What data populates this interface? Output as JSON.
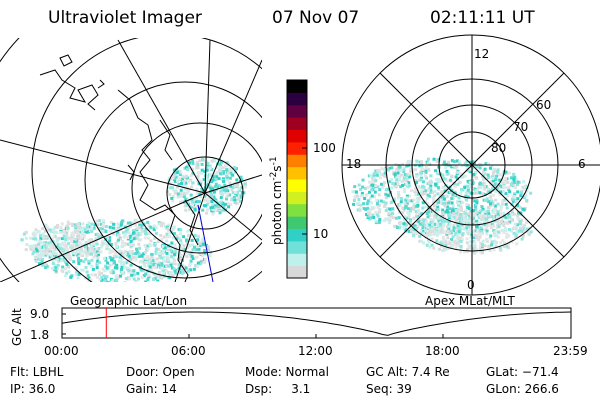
{
  "header": {
    "instrument": "Ultraviolet Imager",
    "date": "07 Nov 07",
    "time": "02:11:11 UT"
  },
  "colorbar": {
    "label": "photon cm",
    "exp1": "-2",
    "mid": "s",
    "exp2": "-1",
    "tick_100": "100",
    "tick_10": "10",
    "colors": [
      "#d8d8d8",
      "#c0f0ec",
      "#70e0d8",
      "#30d0c8",
      "#40c870",
      "#80e040",
      "#d0f020",
      "#ffff00",
      "#ffc000",
      "#ff8000",
      "#ff2000",
      "#e00000",
      "#a00020",
      "#600040",
      "#2a0040",
      "#000000"
    ]
  },
  "left_panel": {
    "caption": "Geographic Lat/Lon"
  },
  "right_panel": {
    "caption": "Apex MLat/MLT",
    "mlt_12": "12",
    "mlt_18": "18",
    "mlt_6": "6",
    "mlt_0": "0",
    "lat_60": "60",
    "lat_70": "70",
    "lat_80": "80"
  },
  "timeline": {
    "ylabel": "GC Alt",
    "y_top": "9.0",
    "y_bottom": "1.8",
    "x_ticks": [
      "00:00",
      "06:00",
      "12:00",
      "18:00",
      "23:59"
    ],
    "current_fraction": 0.087,
    "marker_color": "#ff0000"
  },
  "info": {
    "flt": "Flt: LBHL",
    "ip": "IP: 36.0",
    "door": "Door: Open",
    "gain": "Gain: 14",
    "mode": "Mode: Normal",
    "dsp": "Dsp:     3.1",
    "gcalt": "GC Alt: 7.4 Re",
    "seq": "Seq: 39",
    "glat": "GLat: −71.4",
    "glon": "GLon: 266.6"
  }
}
